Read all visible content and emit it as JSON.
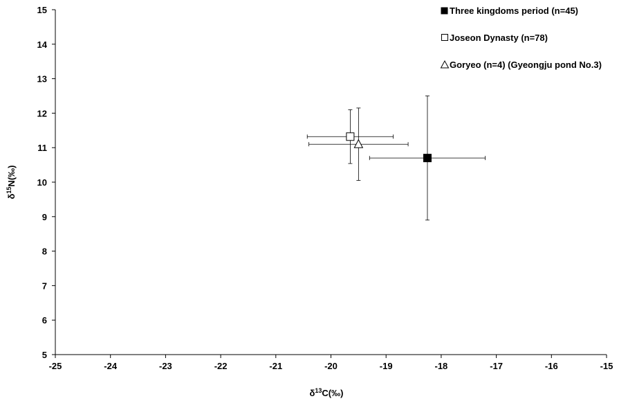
{
  "chart_data": {
    "type": "scatter",
    "title": "",
    "xlabel": {
      "base": "δ",
      "sup": "13",
      "rest": "C(‰)"
    },
    "ylabel": {
      "base": "δ",
      "sup": "15",
      "rest": "N(‰)"
    },
    "xlim": [
      -25,
      -15
    ],
    "ylim": [
      5,
      15
    ],
    "x_ticks": [
      -25,
      -24,
      -23,
      -22,
      -21,
      -20,
      -19,
      -18,
      -17,
      -16,
      -15
    ],
    "y_ticks": [
      5,
      6,
      7,
      8,
      9,
      10,
      11,
      12,
      13,
      14,
      15
    ],
    "grid": false,
    "legend_position": "top-right",
    "series": [
      {
        "name": "Three kingdoms period (n=45)",
        "marker": "filled-square",
        "x": -18.25,
        "y": 10.7,
        "x_err": 1.05,
        "y_err": 1.8
      },
      {
        "name": "Joseon Dynasty (n=78)",
        "marker": "open-square",
        "x": -19.65,
        "y": 11.32,
        "x_err": 0.78,
        "y_err": 0.78
      },
      {
        "name": "Goryeo (n=4) (Gyeongju pond No.3)",
        "marker": "open-triangle",
        "x": -19.5,
        "y": 11.1,
        "x_err": 0.9,
        "y_err": 1.05
      }
    ]
  }
}
